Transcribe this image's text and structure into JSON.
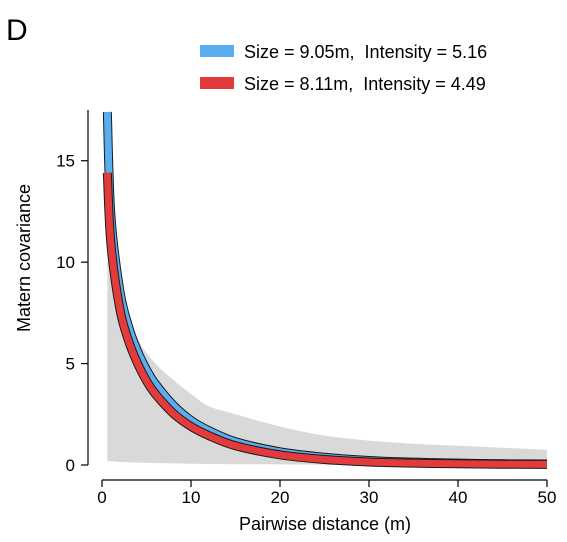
{
  "panel_label": "D",
  "chart_data": {
    "type": "line",
    "title": "",
    "xlabel": "Pairwise distance (m)",
    "ylabel": "Matern covariance",
    "xlim": [
      0,
      50
    ],
    "ylim": [
      0,
      17.5
    ],
    "xticks": [
      0,
      10,
      20,
      30,
      40,
      50
    ],
    "yticks": [
      0,
      5,
      10,
      15
    ],
    "grid": false,
    "legend_position": "top-right",
    "series": [
      {
        "name": "Size = 9.05m,  Intensity = 5.16",
        "color": "#5aaef0",
        "x": [
          0.6,
          1,
          2,
          3,
          4,
          5,
          6,
          8,
          10,
          12,
          15,
          20,
          25,
          30,
          35,
          40,
          45,
          50
        ],
        "y": [
          17.4,
          12.3,
          8.6,
          6.8,
          5.6,
          4.7,
          4.0,
          2.95,
          2.2,
          1.7,
          1.15,
          0.65,
          0.38,
          0.22,
          0.14,
          0.09,
          0.06,
          0.05
        ]
      },
      {
        "name": "Size = 8.11m,  Intensity = 4.49",
        "color": "#e33b3b",
        "x": [
          0.6,
          1,
          2,
          3,
          4,
          5,
          6,
          8,
          10,
          12,
          15,
          20,
          25,
          30,
          35,
          40,
          45,
          50
        ],
        "y": [
          14.4,
          10.9,
          7.7,
          6.1,
          5.0,
          4.15,
          3.5,
          2.55,
          1.9,
          1.45,
          0.95,
          0.5,
          0.27,
          0.15,
          0.09,
          0.06,
          0.04,
          0.03
        ]
      }
    ],
    "band": {
      "color": "#d9d9d9",
      "x": [
        0.6,
        2,
        4,
        6,
        8,
        10,
        12,
        15,
        20,
        25,
        30,
        35,
        40,
        45,
        50
      ],
      "upper": [
        10.5,
        8.2,
        6.2,
        5.0,
        4.2,
        3.5,
        2.9,
        2.5,
        1.9,
        1.45,
        1.2,
        1.05,
        0.95,
        0.85,
        0.75
      ],
      "lower": [
        0.2,
        0.15,
        0.12,
        0.1,
        0.08,
        0.06,
        0.05,
        0.04,
        0.03,
        0.02,
        0.01,
        0.01,
        0.0,
        0.0,
        0.0
      ]
    }
  }
}
